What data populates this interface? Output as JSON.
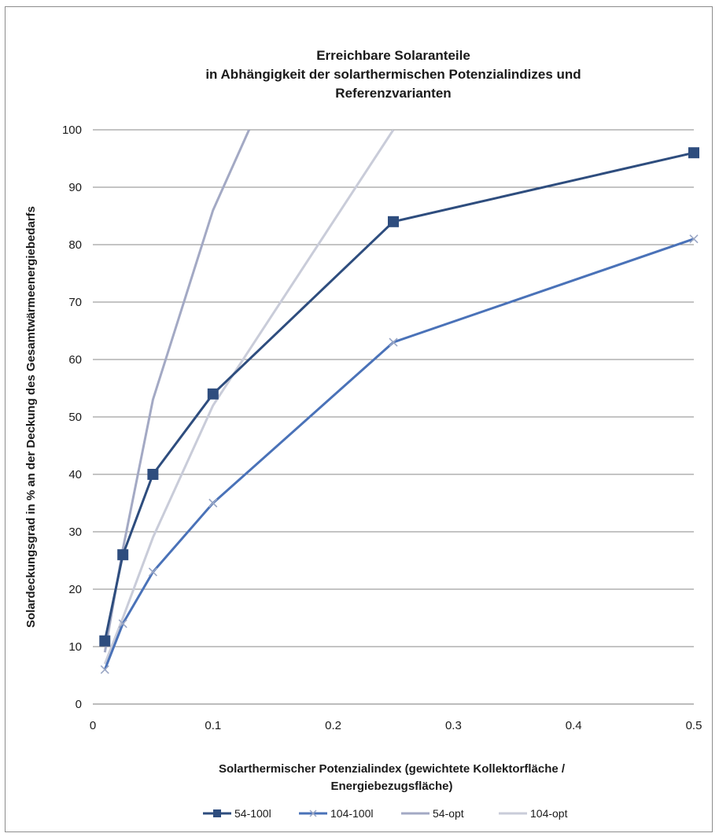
{
  "chart_data": {
    "type": "line",
    "title": [
      "Erreichbare Solaranteile",
      "in Abhängigkeit der solarthermischen Potenzialindizes und",
      "Referenzvarianten"
    ],
    "xlabel": [
      "Solarthermischer Potenzialindex (gewichtete Kollektorfläche /",
      "Energiebezugsfläche)"
    ],
    "ylabel": "Solardeckungsgrad in % an der Deckung des Gesamtwärmeenergiebedarfs",
    "xlim": [
      0,
      0.5
    ],
    "ylim": [
      0,
      100
    ],
    "xticks": [
      "0",
      "0.1",
      "0.2",
      "0.3",
      "0.4",
      "0.5"
    ],
    "yticks": [
      "0",
      "10",
      "20",
      "30",
      "40",
      "50",
      "60",
      "70",
      "80",
      "90",
      "100"
    ],
    "grid": "horizontal",
    "legend_position": "bottom",
    "series": [
      {
        "name": "54-100l",
        "color": "#2e4d7e",
        "marker": "square",
        "points": [
          [
            0.01,
            11
          ],
          [
            0.025,
            26
          ],
          [
            0.05,
            40
          ],
          [
            0.1,
            54
          ],
          [
            0.25,
            84
          ],
          [
            0.5,
            96
          ]
        ]
      },
      {
        "name": "104-100l",
        "color": "#4a72b8",
        "marker": "x",
        "points": [
          [
            0.01,
            6
          ],
          [
            0.025,
            14
          ],
          [
            0.05,
            23
          ],
          [
            0.1,
            35
          ],
          [
            0.25,
            63
          ],
          [
            0.5,
            81
          ]
        ]
      },
      {
        "name": "54-opt",
        "color": "#a3a9c4",
        "marker": "none",
        "points": [
          [
            0.01,
            9
          ],
          [
            0.025,
            27
          ],
          [
            0.05,
            53
          ],
          [
            0.1,
            86
          ],
          [
            0.13,
            100
          ]
        ]
      },
      {
        "name": "104-opt",
        "color": "#c9ccd9",
        "marker": "none",
        "points": [
          [
            0.01,
            7
          ],
          [
            0.025,
            15
          ],
          [
            0.05,
            29
          ],
          [
            0.1,
            52
          ],
          [
            0.25,
            100
          ]
        ]
      }
    ]
  }
}
